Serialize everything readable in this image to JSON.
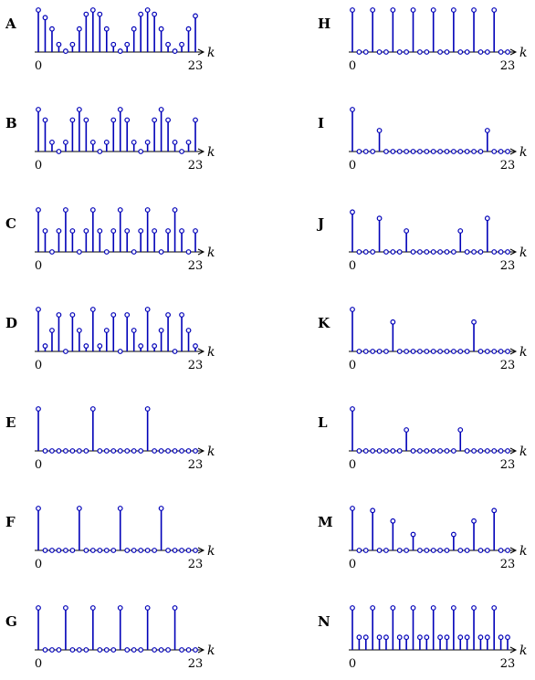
{
  "figure": {
    "x_start_label": "0",
    "x_end_label": "23",
    "x_var": "k",
    "n": 24,
    "stem_color": "#0000b8",
    "axis_color": "#000000"
  },
  "plots": [
    {
      "label": "A",
      "values": [
        1.0,
        0.82,
        0.55,
        0.18,
        0.02,
        0.18,
        0.55,
        0.9,
        1.0,
        0.9,
        0.55,
        0.18,
        0.02,
        0.18,
        0.55,
        0.9,
        1.0,
        0.9,
        0.55,
        0.18,
        0.02,
        0.18,
        0.55,
        0.86
      ]
    },
    {
      "label": "B",
      "values": [
        1.0,
        0.75,
        0.22,
        0.0,
        0.22,
        0.75,
        1.0,
        0.75,
        0.22,
        0.0,
        0.22,
        0.75,
        1.0,
        0.75,
        0.22,
        0.0,
        0.22,
        0.75,
        1.0,
        0.75,
        0.22,
        0.0,
        0.22,
        0.75
      ]
    },
    {
      "label": "C",
      "values": [
        1.0,
        0.5,
        0.0,
        0.5,
        1.0,
        0.5,
        0.0,
        0.5,
        1.0,
        0.5,
        0.0,
        0.5,
        1.0,
        0.5,
        0.0,
        0.5,
        1.0,
        0.5,
        0.0,
        0.5,
        1.0,
        0.5,
        0.0,
        0.5
      ]
    },
    {
      "label": "D",
      "values": [
        1.0,
        0.13,
        0.5,
        0.87,
        0.0,
        0.87,
        0.5,
        0.13,
        1.0,
        0.13,
        0.5,
        0.87,
        0.0,
        0.87,
        0.5,
        0.13,
        1.0,
        0.13,
        0.5,
        0.87,
        0.0,
        0.87,
        0.5,
        0.13
      ]
    },
    {
      "label": "E",
      "values": [
        1,
        0,
        0,
        0,
        0,
        0,
        0,
        0,
        1,
        0,
        0,
        0,
        0,
        0,
        0,
        0,
        1,
        0,
        0,
        0,
        0,
        0,
        0,
        0
      ]
    },
    {
      "label": "F",
      "values": [
        1,
        0,
        0,
        0,
        0,
        0,
        1,
        0,
        0,
        0,
        0,
        0,
        1,
        0,
        0,
        0,
        0,
        0,
        1,
        0,
        0,
        0,
        0,
        0
      ]
    },
    {
      "label": "G",
      "values": [
        1,
        0,
        0,
        0,
        1,
        0,
        0,
        0,
        1,
        0,
        0,
        0,
        1,
        0,
        0,
        0,
        1,
        0,
        0,
        0,
        1,
        0,
        0,
        0
      ]
    },
    {
      "label": "H",
      "values": [
        1,
        0,
        0,
        1,
        0,
        0,
        1,
        0,
        0,
        1,
        0,
        0,
        1,
        0,
        0,
        1,
        0,
        0,
        1,
        0,
        0,
        1,
        0,
        0
      ]
    },
    {
      "label": "I",
      "values": [
        1.0,
        0,
        0,
        0,
        0.5,
        0,
        0,
        0,
        0,
        0,
        0,
        0,
        0,
        0,
        0,
        0,
        0,
        0,
        0,
        0,
        0.5,
        0,
        0,
        0
      ]
    },
    {
      "label": "J",
      "values": [
        0.95,
        0,
        0,
        0,
        0.8,
        0,
        0,
        0,
        0.5,
        0,
        0,
        0,
        0,
        0,
        0,
        0,
        0.5,
        0,
        0,
        0,
        0.8,
        0,
        0,
        0
      ]
    },
    {
      "label": "K",
      "values": [
        1.0,
        0,
        0,
        0,
        0,
        0,
        0.7,
        0,
        0,
        0,
        0,
        0,
        0,
        0,
        0,
        0,
        0,
        0,
        0.7,
        0,
        0,
        0,
        0,
        0
      ]
    },
    {
      "label": "L",
      "values": [
        1.0,
        0,
        0,
        0,
        0,
        0,
        0,
        0,
        0.5,
        0,
        0,
        0,
        0,
        0,
        0,
        0,
        0.5,
        0,
        0,
        0,
        0,
        0,
        0,
        0
      ]
    },
    {
      "label": "M",
      "values": [
        1.0,
        0,
        0,
        0.95,
        0,
        0,
        0.7,
        0,
        0,
        0.38,
        0,
        0,
        0,
        0,
        0,
        0.38,
        0,
        0,
        0.7,
        0,
        0,
        0.95,
        0,
        0
      ]
    },
    {
      "label": "N",
      "values": [
        1,
        0.3,
        0.3,
        1,
        0.3,
        0.3,
        1,
        0.3,
        0.3,
        1,
        0.3,
        0.3,
        1,
        0.3,
        0.3,
        1,
        0.3,
        0.3,
        1,
        0.3,
        0.3,
        1,
        0.3,
        0.3
      ]
    }
  ]
}
